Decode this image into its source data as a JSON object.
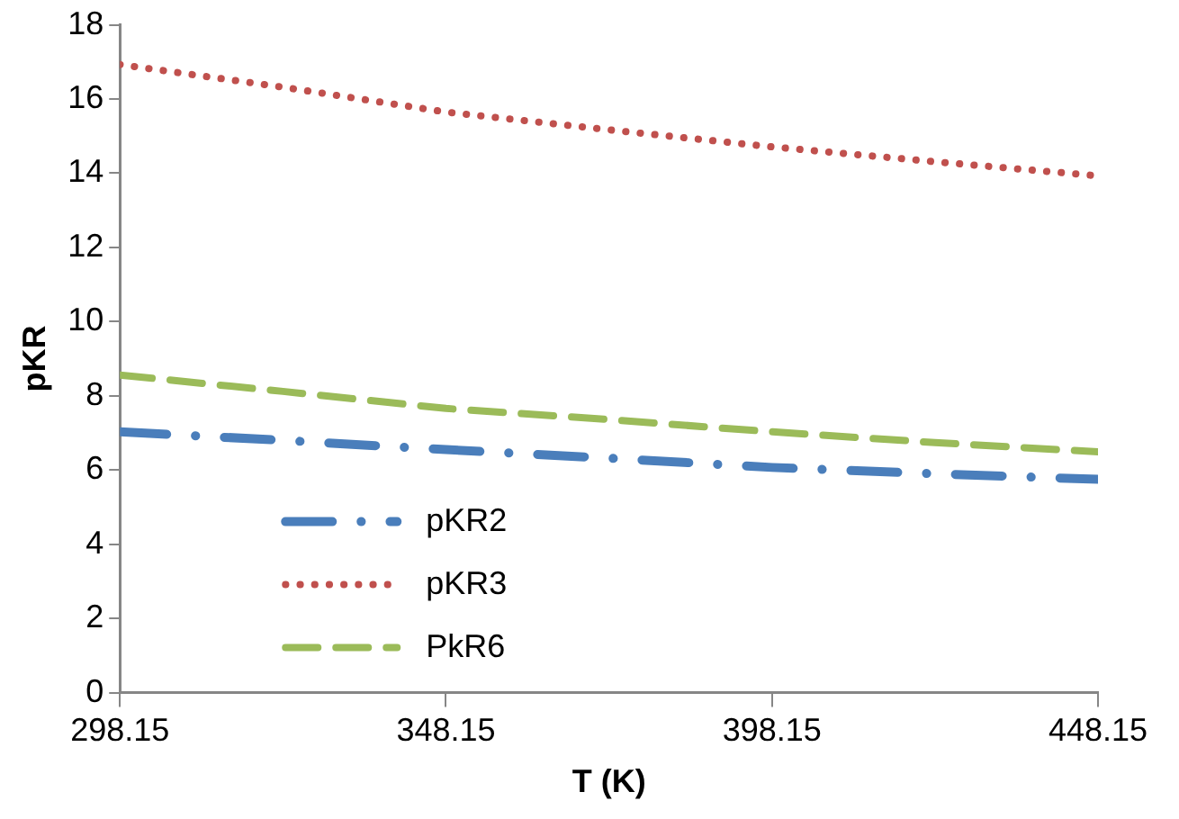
{
  "chart_data": {
    "type": "line",
    "xlabel": "T (K)",
    "ylabel": "pKR",
    "x": [
      298.15,
      323.15,
      348.15,
      373.15,
      398.15,
      423.15,
      448.15
    ],
    "series": [
      {
        "name": "pKR2",
        "color": "#4a7ebb",
        "line_style": "dashdot",
        "values": [
          7.03,
          6.8,
          6.55,
          6.32,
          6.07,
          5.9,
          5.75
        ]
      },
      {
        "name": "pKR3",
        "color": "#c0504d",
        "line_style": "dotted",
        "values": [
          16.93,
          16.32,
          15.65,
          15.17,
          14.71,
          14.31,
          13.93
        ]
      },
      {
        "name": "PkR6",
        "color": "#9bbb59",
        "line_style": "dashed",
        "values": [
          8.56,
          8.12,
          7.66,
          7.36,
          7.03,
          6.74,
          6.49
        ]
      }
    ],
    "xlim": [
      298.15,
      448.15
    ],
    "xticks": [
      298.15,
      348.15,
      398.15,
      448.15
    ],
    "ylim": [
      0,
      18
    ],
    "yticks": [
      0,
      2,
      4,
      6,
      8,
      10,
      12,
      14,
      16,
      18
    ],
    "grid": false,
    "marker": "none",
    "legend": "bottom left"
  }
}
